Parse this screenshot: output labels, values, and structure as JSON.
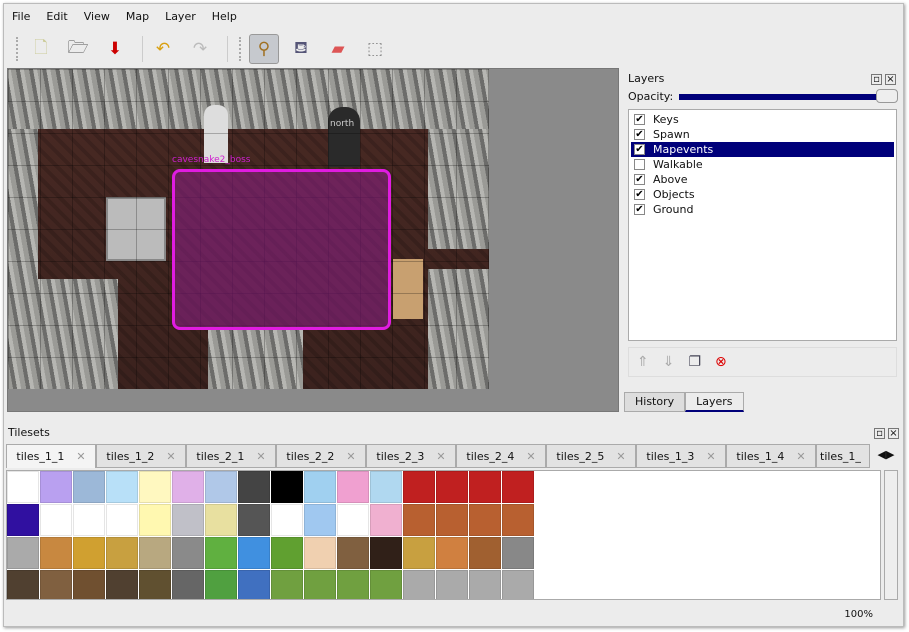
{
  "menu": [
    "File",
    "Edit",
    "View",
    "Map",
    "Layer",
    "Help"
  ],
  "toolbar": [
    {
      "name": "new-icon",
      "glyph": "🗋"
    },
    {
      "name": "open-icon",
      "glyph": "🗁"
    },
    {
      "name": "save-icon",
      "glyph": "⬇"
    },
    {
      "name": "undo-icon",
      "glyph": "↶"
    },
    {
      "name": "redo-icon",
      "glyph": "↷"
    },
    {
      "name": "stamp-brush-icon",
      "glyph": "⚲",
      "active": true
    },
    {
      "name": "bucket-fill-icon",
      "glyph": "⛾"
    },
    {
      "name": "eraser-icon",
      "glyph": "▰"
    },
    {
      "name": "rect-select-icon",
      "glyph": "⬚"
    }
  ],
  "map": {
    "object_label": "cavesnake2_boss",
    "north_label": "north",
    "selection_color": "#e01ce0"
  },
  "layers_panel": {
    "title": "Layers",
    "opacity_label": "Opacity:",
    "opacity": 1.0,
    "layers": [
      {
        "name": "Keys",
        "visible": true
      },
      {
        "name": "Spawn",
        "visible": true
      },
      {
        "name": "Mapevents",
        "visible": true,
        "selected": true
      },
      {
        "name": "Walkable",
        "visible": false
      },
      {
        "name": "Above",
        "visible": true
      },
      {
        "name": "Objects",
        "visible": true
      },
      {
        "name": "Ground",
        "visible": true
      }
    ],
    "buttons": [
      "raise-layer-icon",
      "lower-layer-icon",
      "duplicate-layer-icon",
      "remove-layer-icon"
    ]
  },
  "dock_tabs": [
    "History",
    "Layers"
  ],
  "tilesets": {
    "title": "Tilesets",
    "tabs": [
      "tiles_1_1",
      "tiles_1_2",
      "tiles_2_1",
      "tiles_2_2",
      "tiles_2_3",
      "tiles_2_4",
      "tiles_2_5",
      "tiles_1_3",
      "tiles_1_4",
      "tiles_1_"
    ]
  },
  "status": {
    "zoom": "100%"
  }
}
